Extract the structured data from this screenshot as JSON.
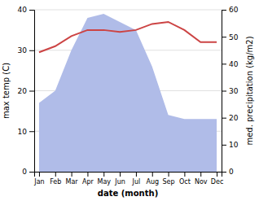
{
  "chart_data": {
    "type": "line",
    "categories": [
      "Jan",
      "Feb",
      "Mar",
      "Apr",
      "May",
      "Jun",
      "Jul",
      "Aug",
      "Sep",
      "Oct",
      "Nov",
      "Dec"
    ],
    "xlabel": "date (month)",
    "ylabel": "max temp (C)",
    "y2label": "med. precipitation (kg/m2)",
    "series": [
      {
        "type": "area",
        "axis": "y2",
        "color": "#b0bce8",
        "values": [
          25.5,
          30.0,
          45.0,
          57.0,
          58.5,
          55.5,
          52.5,
          39.0,
          21.0,
          19.5,
          19.5,
          19.5
        ]
      },
      {
        "type": "line",
        "color": "#cc4444",
        "values": [
          29.5,
          31.0,
          33.5,
          35.0,
          35.0,
          34.5,
          35.0,
          36.5,
          37.0,
          35.0,
          32.0,
          32.0
        ]
      }
    ],
    "ylim": [
      0,
      40
    ],
    "yticks": [
      0,
      10,
      20,
      30,
      40
    ],
    "y2lim": [
      0,
      60
    ],
    "y2ticks": [
      0,
      10,
      20,
      30,
      40,
      50,
      60
    ],
    "grid": true
  }
}
